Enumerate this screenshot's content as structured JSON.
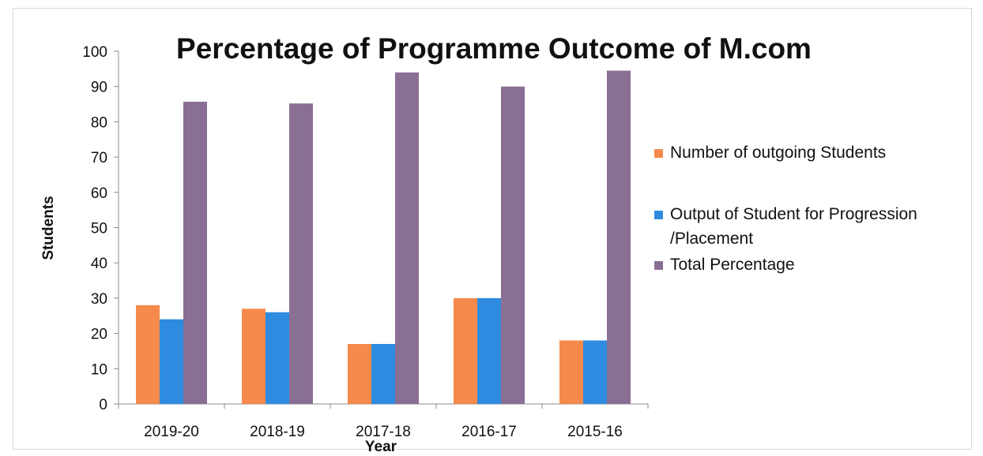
{
  "chart_data": {
    "type": "bar",
    "title": "Percentage of Programme Outcome of M.com",
    "xlabel": "Year",
    "ylabel": "Students",
    "categories": [
      "2019-20",
      "2018-19",
      "2017-18",
      "2016-17",
      "2015-16"
    ],
    "ylim": [
      0,
      100
    ],
    "yticks": [
      0,
      10,
      20,
      30,
      40,
      50,
      60,
      70,
      80,
      90,
      100
    ],
    "grid": false,
    "legend_position": "right",
    "series": [
      {
        "name": "Number of outgoing Students",
        "color": "#f58a4b",
        "values": [
          28,
          27,
          17,
          30,
          18
        ]
      },
      {
        "name": "Output of Student for Progression /Placement",
        "color": "#2e8be0",
        "values": [
          24,
          26,
          17,
          30,
          18
        ]
      },
      {
        "name": "Total Percentage",
        "color": "#8a6f94",
        "values": [
          85.7,
          85.2,
          94,
          90,
          94.5
        ]
      }
    ]
  }
}
